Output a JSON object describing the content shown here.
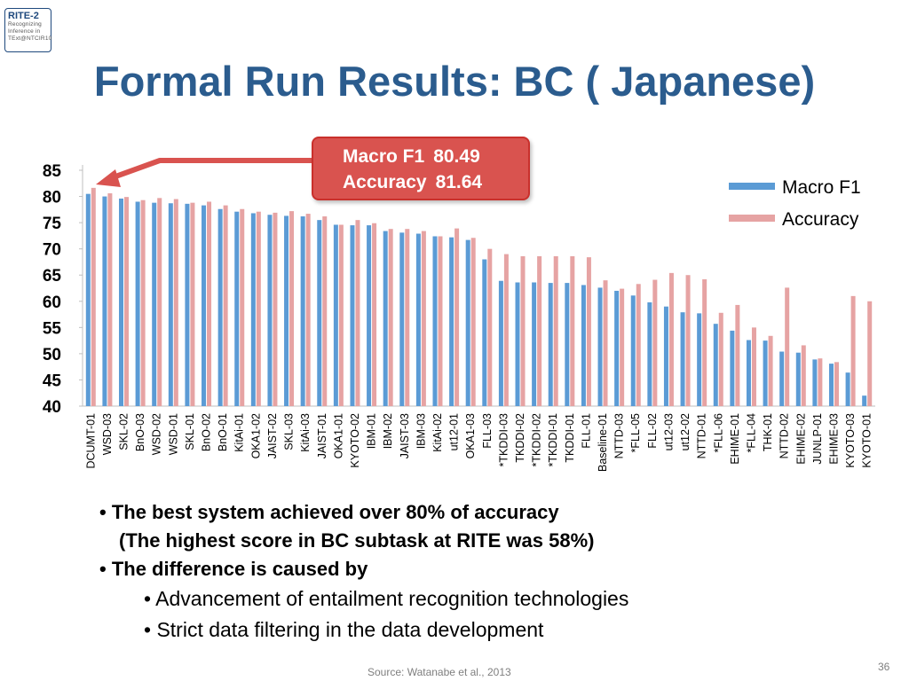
{
  "logo": {
    "title": "RITE-2",
    "line1": "Recognizing",
    "line2": "Inference in",
    "line3": "TExt@NTCIR10"
  },
  "title": "Formal Run Results: BC ( Japanese)",
  "callout": {
    "row1_label": "Macro F1",
    "row1_value": "80.49",
    "row2_label": "Accuracy",
    "row2_value": "81.64"
  },
  "chart_data": {
    "type": "bar",
    "categories": [
      "DCUMT-01",
      "WSD-03",
      "SKL-02",
      "BnO-03",
      "WSD-02",
      "WSD-01",
      "SKL-01",
      "BnO-02",
      "BnO-01",
      "KitAi-01",
      "OKA1-02",
      "JAIST-02",
      "SKL-03",
      "KitAi-03",
      "JAIST-01",
      "OKA1-01",
      "KYOTO-02",
      "IBM-01",
      "IBM-02",
      "JAIST-03",
      "IBM-03",
      "KitAi-02",
      "ut12-01",
      "OKA1-03",
      "FLL-03",
      "*TKDDI-03",
      "TKDDI-02",
      "*TKDDI-02",
      "*TKDDI-01",
      "TKDDI-01",
      "FLL-01",
      "Baseline-01",
      "NTTD-03",
      "*FLL-05",
      "FLL-02",
      "ut12-03",
      "ut12-02",
      "NTTD-01",
      "*FLL-06",
      "EHIME-01",
      "*FLL-04",
      "THK-01",
      "NTTD-02",
      "EHIME-02",
      "JUNLP-01",
      "EHIME-03",
      "KYOTO-03",
      "KYOTO-01"
    ],
    "series": [
      {
        "name": "Macro F1",
        "color": "#5b9bd5",
        "values": [
          80.49,
          80.0,
          79.6,
          79.0,
          78.8,
          78.7,
          78.6,
          78.3,
          77.6,
          77.1,
          76.8,
          76.5,
          76.3,
          76.2,
          75.5,
          74.6,
          74.5,
          74.5,
          73.4,
          73.1,
          72.9,
          72.4,
          72.2,
          71.7,
          68.0,
          63.9,
          63.6,
          63.6,
          63.5,
          63.5,
          63.1,
          62.6,
          62.0,
          61.1,
          59.8,
          59.0,
          57.9,
          57.7,
          55.7,
          54.4,
          52.6,
          52.5,
          50.4,
          50.2,
          48.9,
          48.1,
          46.4,
          42.0
        ]
      },
      {
        "name": "Accuracy",
        "color": "#e6a3a3",
        "values": [
          81.64,
          80.6,
          79.9,
          79.3,
          79.7,
          79.5,
          78.8,
          79.0,
          78.3,
          77.6,
          77.1,
          76.9,
          77.2,
          76.7,
          76.2,
          74.6,
          75.5,
          74.9,
          73.8,
          73.8,
          73.4,
          72.4,
          73.9,
          72.1,
          70.0,
          69.0,
          68.6,
          68.6,
          68.6,
          68.6,
          68.4,
          64.0,
          62.4,
          63.3,
          64.1,
          65.4,
          65.0,
          64.2,
          57.8,
          59.3,
          55.0,
          53.4,
          62.6,
          51.6,
          49.1,
          48.4,
          61.0,
          60.0
        ]
      }
    ],
    "ylim": [
      40,
      85
    ],
    "yticks": [
      "40",
      "45",
      "50",
      "55",
      "60",
      "65",
      "70",
      "75",
      "80",
      "85"
    ],
    "grid": false,
    "legend_position": "top-right"
  },
  "bullets": {
    "item1_line1": "• The best system achieved over 80% of accuracy",
    "item1_line2": "(The highest score in BC subtask at RITE was 58%)",
    "item2": "• The difference is caused by",
    "sub1": "•  Advancement of entailment recognition technologies",
    "sub2": "•  Strict data filtering in the data development"
  },
  "source": "Source: Watanabe et al., 2013",
  "page_number": "36"
}
